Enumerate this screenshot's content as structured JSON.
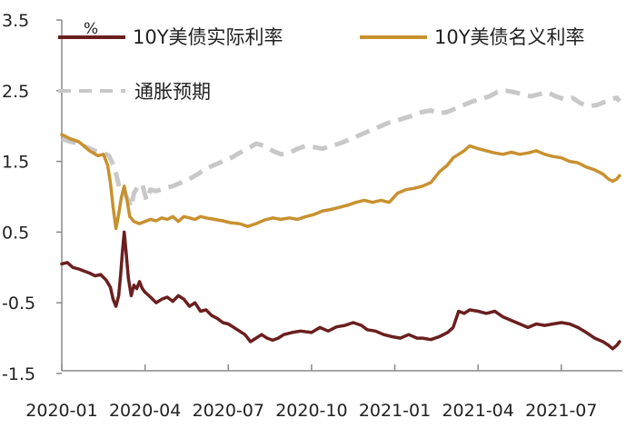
{
  "chart_data": {
    "type": "line",
    "unit": "%",
    "y_ticks": [
      "3.5",
      "2.5",
      "1.5",
      "0.5",
      "-0.5",
      "-1.5"
    ],
    "ylim": [
      -1.5,
      3.5
    ],
    "x_ticks": [
      "2020-01",
      "2020-04",
      "2020-07",
      "2020-10",
      "2021-01",
      "2021-04",
      "2021-07"
    ],
    "x_tick_index": [
      0,
      3,
      6,
      9,
      12,
      15,
      18
    ],
    "x_range": [
      0,
      20.2
    ],
    "legend": [
      "10Y美债实际利率",
      "10Y美债名义利率",
      "通胀预期"
    ],
    "series": [
      {
        "name": "10Y美债实际利率",
        "color": "#6b1f1f",
        "style": "solid",
        "points": [
          [
            0,
            0.05
          ],
          [
            0.2,
            0.07
          ],
          [
            0.4,
            0.0
          ],
          [
            0.6,
            -0.02
          ],
          [
            0.8,
            -0.05
          ],
          [
            1.0,
            -0.08
          ],
          [
            1.2,
            -0.12
          ],
          [
            1.4,
            -0.1
          ],
          [
            1.6,
            -0.18
          ],
          [
            1.75,
            -0.28
          ],
          [
            1.85,
            -0.45
          ],
          [
            1.95,
            -0.55
          ],
          [
            2.05,
            -0.4
          ],
          [
            2.12,
            -0.1
          ],
          [
            2.18,
            0.2
          ],
          [
            2.25,
            0.5
          ],
          [
            2.32,
            0.2
          ],
          [
            2.4,
            -0.15
          ],
          [
            2.5,
            -0.4
          ],
          [
            2.6,
            -0.25
          ],
          [
            2.7,
            -0.3
          ],
          [
            2.8,
            -0.2
          ],
          [
            2.9,
            -0.3
          ],
          [
            3.0,
            -0.35
          ],
          [
            3.2,
            -0.42
          ],
          [
            3.4,
            -0.5
          ],
          [
            3.6,
            -0.45
          ],
          [
            3.8,
            -0.42
          ],
          [
            4.0,
            -0.48
          ],
          [
            4.2,
            -0.4
          ],
          [
            4.4,
            -0.45
          ],
          [
            4.6,
            -0.55
          ],
          [
            4.8,
            -0.5
          ],
          [
            5.0,
            -0.62
          ],
          [
            5.2,
            -0.6
          ],
          [
            5.4,
            -0.68
          ],
          [
            5.6,
            -0.72
          ],
          [
            5.8,
            -0.78
          ],
          [
            6.0,
            -0.8
          ],
          [
            6.2,
            -0.85
          ],
          [
            6.4,
            -0.9
          ],
          [
            6.6,
            -0.95
          ],
          [
            6.8,
            -1.05
          ],
          [
            7.0,
            -1.0
          ],
          [
            7.2,
            -0.95
          ],
          [
            7.4,
            -1.0
          ],
          [
            7.6,
            -1.03
          ],
          [
            7.8,
            -1.0
          ],
          [
            8.0,
            -0.95
          ],
          [
            8.3,
            -0.92
          ],
          [
            8.6,
            -0.9
          ],
          [
            9.0,
            -0.92
          ],
          [
            9.3,
            -0.85
          ],
          [
            9.6,
            -0.9
          ],
          [
            9.9,
            -0.84
          ],
          [
            10.2,
            -0.82
          ],
          [
            10.5,
            -0.78
          ],
          [
            10.8,
            -0.82
          ],
          [
            11.0,
            -0.88
          ],
          [
            11.3,
            -0.9
          ],
          [
            11.6,
            -0.95
          ],
          [
            11.9,
            -0.98
          ],
          [
            12.2,
            -1.0
          ],
          [
            12.5,
            -0.95
          ],
          [
            12.8,
            -1.0
          ],
          [
            13.0,
            -1.0
          ],
          [
            13.3,
            -1.02
          ],
          [
            13.6,
            -0.98
          ],
          [
            13.9,
            -0.92
          ],
          [
            14.1,
            -0.85
          ],
          [
            14.3,
            -0.62
          ],
          [
            14.5,
            -0.65
          ],
          [
            14.7,
            -0.6
          ],
          [
            15.0,
            -0.62
          ],
          [
            15.3,
            -0.65
          ],
          [
            15.6,
            -0.62
          ],
          [
            15.9,
            -0.7
          ],
          [
            16.2,
            -0.75
          ],
          [
            16.5,
            -0.8
          ],
          [
            16.8,
            -0.85
          ],
          [
            17.1,
            -0.8
          ],
          [
            17.4,
            -0.82
          ],
          [
            17.7,
            -0.8
          ],
          [
            18.0,
            -0.78
          ],
          [
            18.3,
            -0.8
          ],
          [
            18.6,
            -0.85
          ],
          [
            18.9,
            -0.92
          ],
          [
            19.2,
            -1.0
          ],
          [
            19.5,
            -1.05
          ],
          [
            19.7,
            -1.1
          ],
          [
            19.85,
            -1.15
          ],
          [
            20.0,
            -1.1
          ],
          [
            20.1,
            -1.05
          ]
        ]
      },
      {
        "name": "10Y美债名义利率",
        "color": "#c8912f",
        "style": "solid",
        "points": [
          [
            0,
            1.88
          ],
          [
            0.3,
            1.82
          ],
          [
            0.6,
            1.78
          ],
          [
            0.8,
            1.72
          ],
          [
            1.0,
            1.65
          ],
          [
            1.3,
            1.58
          ],
          [
            1.5,
            1.6
          ],
          [
            1.65,
            1.45
          ],
          [
            1.75,
            1.2
          ],
          [
            1.85,
            0.85
          ],
          [
            1.95,
            0.55
          ],
          [
            2.05,
            0.75
          ],
          [
            2.15,
            1.0
          ],
          [
            2.25,
            1.15
          ],
          [
            2.35,
            0.95
          ],
          [
            2.45,
            0.72
          ],
          [
            2.6,
            0.65
          ],
          [
            2.8,
            0.62
          ],
          [
            3.0,
            0.65
          ],
          [
            3.2,
            0.68
          ],
          [
            3.4,
            0.66
          ],
          [
            3.6,
            0.7
          ],
          [
            3.8,
            0.68
          ],
          [
            4.0,
            0.72
          ],
          [
            4.2,
            0.65
          ],
          [
            4.4,
            0.72
          ],
          [
            4.6,
            0.7
          ],
          [
            4.8,
            0.68
          ],
          [
            5.0,
            0.72
          ],
          [
            5.2,
            0.7
          ],
          [
            5.5,
            0.68
          ],
          [
            5.8,
            0.66
          ],
          [
            6.1,
            0.63
          ],
          [
            6.4,
            0.62
          ],
          [
            6.7,
            0.58
          ],
          [
            7.0,
            0.62
          ],
          [
            7.3,
            0.67
          ],
          [
            7.6,
            0.7
          ],
          [
            7.9,
            0.68
          ],
          [
            8.2,
            0.7
          ],
          [
            8.5,
            0.68
          ],
          [
            8.8,
            0.72
          ],
          [
            9.1,
            0.75
          ],
          [
            9.4,
            0.8
          ],
          [
            9.7,
            0.82
          ],
          [
            10.0,
            0.85
          ],
          [
            10.3,
            0.88
          ],
          [
            10.6,
            0.92
          ],
          [
            10.9,
            0.95
          ],
          [
            11.2,
            0.92
          ],
          [
            11.5,
            0.95
          ],
          [
            11.8,
            0.92
          ],
          [
            12.1,
            1.05
          ],
          [
            12.4,
            1.1
          ],
          [
            12.7,
            1.12
          ],
          [
            13.0,
            1.15
          ],
          [
            13.3,
            1.2
          ],
          [
            13.6,
            1.35
          ],
          [
            13.9,
            1.45
          ],
          [
            14.1,
            1.55
          ],
          [
            14.3,
            1.6
          ],
          [
            14.5,
            1.65
          ],
          [
            14.7,
            1.72
          ],
          [
            15.0,
            1.68
          ],
          [
            15.3,
            1.65
          ],
          [
            15.6,
            1.62
          ],
          [
            15.9,
            1.6
          ],
          [
            16.2,
            1.63
          ],
          [
            16.5,
            1.6
          ],
          [
            16.8,
            1.62
          ],
          [
            17.1,
            1.65
          ],
          [
            17.4,
            1.6
          ],
          [
            17.7,
            1.57
          ],
          [
            18.0,
            1.55
          ],
          [
            18.3,
            1.5
          ],
          [
            18.6,
            1.48
          ],
          [
            18.9,
            1.42
          ],
          [
            19.2,
            1.38
          ],
          [
            19.5,
            1.32
          ],
          [
            19.7,
            1.25
          ],
          [
            19.85,
            1.22
          ],
          [
            20.0,
            1.25
          ],
          [
            20.1,
            1.3
          ]
        ]
      },
      {
        "name": "通胀预期",
        "color": "#c8c8c8",
        "style": "dashed",
        "points": [
          [
            0,
            1.82
          ],
          [
            0.3,
            1.78
          ],
          [
            0.6,
            1.75
          ],
          [
            0.9,
            1.7
          ],
          [
            1.2,
            1.65
          ],
          [
            1.5,
            1.62
          ],
          [
            1.7,
            1.58
          ],
          [
            1.9,
            1.42
          ],
          [
            2.0,
            1.25
          ],
          [
            2.1,
            1.1
          ],
          [
            2.25,
            1.05
          ],
          [
            2.4,
            0.95
          ],
          [
            2.5,
            0.85
          ],
          [
            2.6,
            1.05
          ],
          [
            2.75,
            1.15
          ],
          [
            2.9,
            1.18
          ],
          [
            3.05,
            0.95
          ],
          [
            3.2,
            1.1
          ],
          [
            3.4,
            1.08
          ],
          [
            3.7,
            1.12
          ],
          [
            4.0,
            1.15
          ],
          [
            4.3,
            1.2
          ],
          [
            4.6,
            1.25
          ],
          [
            4.9,
            1.32
          ],
          [
            5.2,
            1.4
          ],
          [
            5.5,
            1.45
          ],
          [
            5.8,
            1.5
          ],
          [
            6.1,
            1.55
          ],
          [
            6.4,
            1.62
          ],
          [
            6.7,
            1.68
          ],
          [
            7.0,
            1.75
          ],
          [
            7.3,
            1.72
          ],
          [
            7.6,
            1.65
          ],
          [
            7.9,
            1.6
          ],
          [
            8.2,
            1.62
          ],
          [
            8.5,
            1.68
          ],
          [
            8.8,
            1.72
          ],
          [
            9.1,
            1.7
          ],
          [
            9.4,
            1.68
          ],
          [
            9.7,
            1.72
          ],
          [
            10.0,
            1.75
          ],
          [
            10.3,
            1.8
          ],
          [
            10.6,
            1.85
          ],
          [
            10.9,
            1.9
          ],
          [
            11.2,
            1.95
          ],
          [
            11.5,
            2.0
          ],
          [
            11.8,
            2.05
          ],
          [
            12.1,
            2.08
          ],
          [
            12.4,
            2.12
          ],
          [
            12.7,
            2.15
          ],
          [
            13.0,
            2.2
          ],
          [
            13.3,
            2.22
          ],
          [
            13.6,
            2.18
          ],
          [
            13.9,
            2.2
          ],
          [
            14.2,
            2.25
          ],
          [
            14.5,
            2.3
          ],
          [
            14.8,
            2.35
          ],
          [
            15.1,
            2.38
          ],
          [
            15.4,
            2.42
          ],
          [
            15.7,
            2.48
          ],
          [
            16.0,
            2.5
          ],
          [
            16.3,
            2.48
          ],
          [
            16.6,
            2.45
          ],
          [
            16.9,
            2.42
          ],
          [
            17.2,
            2.45
          ],
          [
            17.5,
            2.48
          ],
          [
            17.8,
            2.42
          ],
          [
            18.1,
            2.38
          ],
          [
            18.4,
            2.4
          ],
          [
            18.7,
            2.32
          ],
          [
            19.0,
            2.28
          ],
          [
            19.3,
            2.3
          ],
          [
            19.6,
            2.35
          ],
          [
            19.8,
            2.38
          ],
          [
            20.0,
            2.4
          ],
          [
            20.1,
            2.35
          ]
        ]
      }
    ]
  }
}
